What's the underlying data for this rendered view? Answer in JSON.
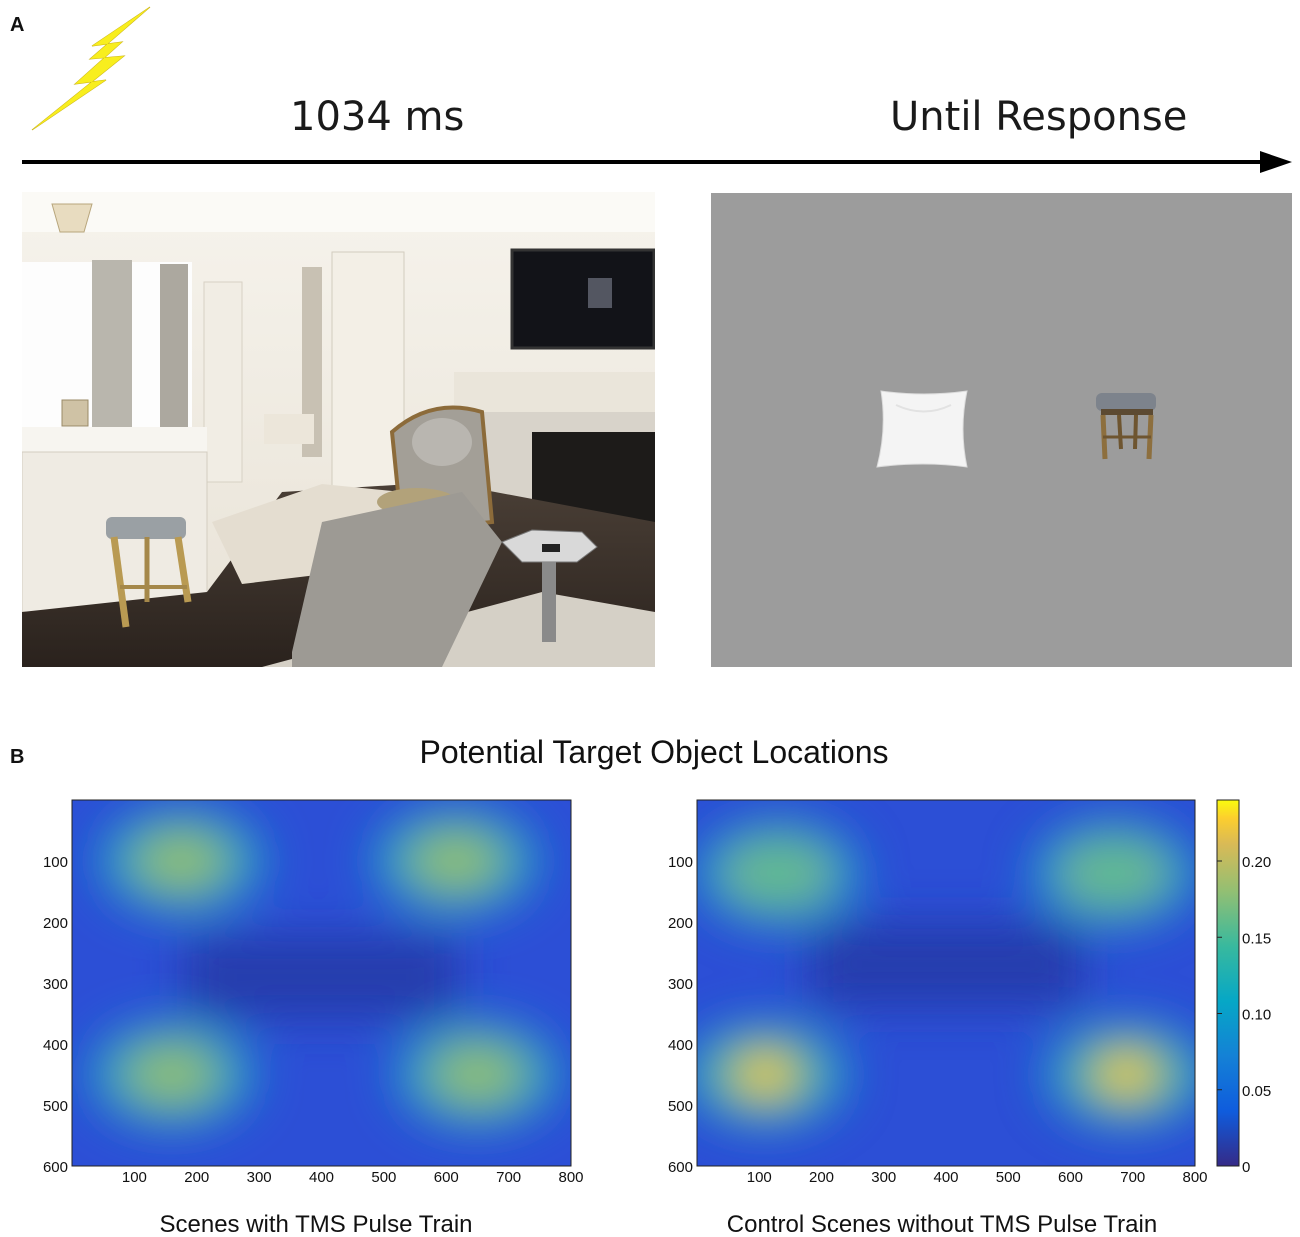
{
  "panel_a": {
    "label": "A",
    "icon": "lightning-bolt-icon",
    "time_left": "1034 ms",
    "time_right": "Until Response"
  },
  "panel_b": {
    "label": "B",
    "title": "Potential Target Object Locations",
    "caption_left": "Scenes with TMS Pulse Train",
    "caption_right": "Control Scenes without TMS Pulse Train",
    "colors": {
      "low": "#352a87",
      "mid": "#21b1a8",
      "high": "#f9fb0e"
    }
  },
  "chart_data": [
    {
      "type": "heatmap",
      "title": "",
      "caption": "Scenes with TMS Pulse Train",
      "x_ticks": [
        100,
        200,
        300,
        400,
        500,
        600,
        700,
        800
      ],
      "y_ticks": [
        100,
        200,
        300,
        400,
        500,
        600
      ],
      "xlim": [
        0,
        800
      ],
      "ylim": [
        600,
        0
      ],
      "hotspots": [
        {
          "x": 175,
          "y": 100,
          "value": 0.17
        },
        {
          "x": 615,
          "y": 100,
          "value": 0.17
        },
        {
          "x": 160,
          "y": 450,
          "value": 0.18
        },
        {
          "x": 650,
          "y": 450,
          "value": 0.18
        }
      ]
    },
    {
      "type": "heatmap",
      "title": "",
      "caption": "Control Scenes without TMS Pulse Train",
      "x_ticks": [
        100,
        200,
        300,
        400,
        500,
        600,
        700,
        800
      ],
      "y_ticks": [
        100,
        200,
        300,
        400,
        500,
        600
      ],
      "xlim": [
        0,
        800
      ],
      "ylim": [
        600,
        0
      ],
      "colorbar_ticks": [
        "0",
        "0.05",
        "0.10",
        "0.15",
        "0.20"
      ],
      "colorbar_range": [
        0,
        0.24
      ],
      "hotspots": [
        {
          "x": 130,
          "y": 120,
          "value": 0.15
        },
        {
          "x": 670,
          "y": 120,
          "value": 0.15
        },
        {
          "x": 110,
          "y": 450,
          "value": 0.22
        },
        {
          "x": 690,
          "y": 450,
          "value": 0.22
        }
      ]
    }
  ]
}
